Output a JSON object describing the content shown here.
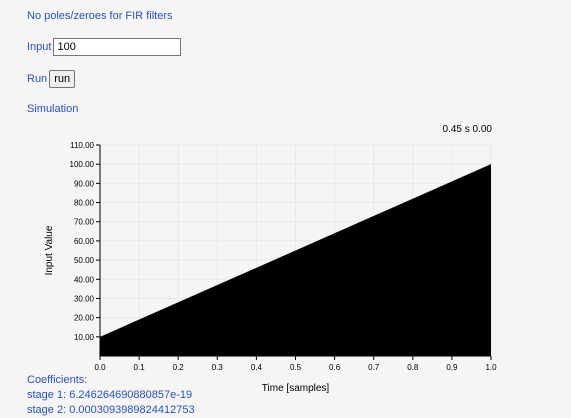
{
  "page": {
    "notice": "No poles/zeroes for FIR filters",
    "input_label": "Input",
    "input_value": "100",
    "run_label": "Run",
    "run_button": "run",
    "simulation_label": "Simulation"
  },
  "readout": "0.45 s 0.00",
  "coefficients": {
    "header": "Coefficients:",
    "items": [
      "stage 1: 6.246264690880857e-19",
      "stage 2: 0.0003093989824412753"
    ]
  },
  "colors": {
    "link": "#2a52be",
    "fill": "#000000",
    "grid": "#e8e8e8"
  },
  "chart_data": {
    "type": "area",
    "xlabel": "Time [samples]",
    "ylabel": "Input Value",
    "xlim": [
      0,
      1
    ],
    "ylim": [
      0,
      110
    ],
    "x_ticks": [
      "0.0",
      "0.1",
      "0.2",
      "0.3",
      "0.4",
      "0.5",
      "0.6",
      "0.7",
      "0.8",
      "0.9",
      "1.0"
    ],
    "y_ticks": [
      "10.00",
      "20.00",
      "30.00",
      "40.00",
      "50.00",
      "60.00",
      "70.00",
      "80.00",
      "90.00",
      "100.00",
      "110.00"
    ],
    "grid": true,
    "series": [
      {
        "x": [
          0.0,
          1.0
        ],
        "y": [
          10,
          100
        ]
      }
    ]
  }
}
